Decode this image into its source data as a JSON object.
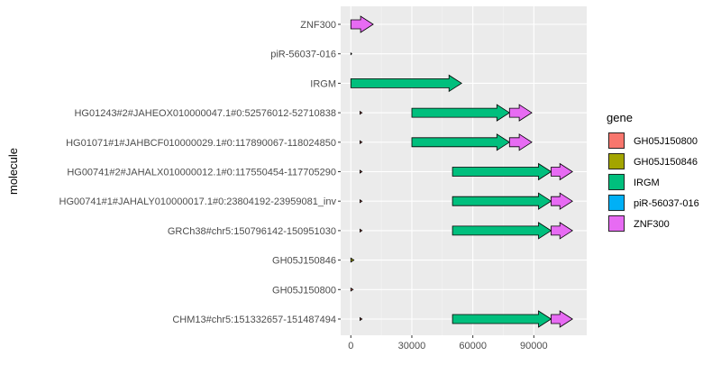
{
  "chart_data": {
    "type": "gene-arrow",
    "xlabel": "",
    "ylabel": "molecule",
    "xlim": [
      -5000,
      116000
    ],
    "x_ticks": [
      0,
      30000,
      60000,
      90000
    ],
    "x_tick_labels": [
      "0",
      "30000",
      "60000",
      "90000"
    ],
    "grid": true,
    "legend": {
      "title": "gene",
      "position": "right",
      "entries": [
        {
          "name": "GH05J150800",
          "color": "#F8766D"
        },
        {
          "name": "GH05J150846",
          "color": "#A3A500"
        },
        {
          "name": "IRGM",
          "color": "#00BF7D"
        },
        {
          "name": "piR-56037-016",
          "color": "#00B0F6"
        },
        {
          "name": "ZNF300",
          "color": "#E76BF3"
        }
      ]
    },
    "molecules": [
      "ZNF300",
      "piR-56037-016",
      "IRGM",
      "HG01243#2#JAHEOX010000047.1#0:52576012-52710838",
      "HG01071#1#JAHBCF010000029.1#0:117890067-118024850",
      "HG00741#2#JAHALX010000012.1#0:117550454-117705290",
      "HG00741#1#JAHALY010000017.1#0:23804192-23959081_inv",
      "GRCh38#chr5:150796142-150951030",
      "GH05J150846",
      "GH05J150800",
      "CHM13#chr5:151332657-151487494"
    ],
    "genes": [
      {
        "molecule": "ZNF300",
        "gene": "ZNF300",
        "start": 0,
        "end": 11000
      },
      {
        "molecule": "piR-56037-016",
        "gene": "piR-56037-016",
        "start": 0,
        "end": 300
      },
      {
        "molecule": "IRGM",
        "gene": "IRGM",
        "start": 0,
        "end": 54500
      },
      {
        "molecule": "HG01243#2#JAHEOX010000047.1#0:52576012-52710838",
        "gene": "GH05J150800",
        "start": 4500,
        "end": 5500
      },
      {
        "molecule": "HG01243#2#JAHEOX010000047.1#0:52576012-52710838",
        "gene": "IRGM",
        "start": 30000,
        "end": 78000
      },
      {
        "molecule": "HG01243#2#JAHEOX010000047.1#0:52576012-52710838",
        "gene": "ZNF300",
        "start": 78000,
        "end": 89000
      },
      {
        "molecule": "HG01071#1#JAHBCF010000029.1#0:117890067-118024850",
        "gene": "GH05J150800",
        "start": 4500,
        "end": 5500
      },
      {
        "molecule": "HG01071#1#JAHBCF010000029.1#0:117890067-118024850",
        "gene": "IRGM",
        "start": 30000,
        "end": 78000
      },
      {
        "molecule": "HG01071#1#JAHBCF010000029.1#0:117890067-118024850",
        "gene": "ZNF300",
        "start": 78000,
        "end": 89000
      },
      {
        "molecule": "HG00741#2#JAHALX010000012.1#0:117550454-117705290",
        "gene": "GH05J150800",
        "start": 4500,
        "end": 5500
      },
      {
        "molecule": "HG00741#2#JAHALX010000012.1#0:117550454-117705290",
        "gene": "IRGM",
        "start": 50000,
        "end": 98500
      },
      {
        "molecule": "HG00741#2#JAHALX010000012.1#0:117550454-117705290",
        "gene": "ZNF300",
        "start": 98500,
        "end": 109000
      },
      {
        "molecule": "HG00741#1#JAHALY010000017.1#0:23804192-23959081_inv",
        "gene": "GH05J150800",
        "start": 4500,
        "end": 5500
      },
      {
        "molecule": "HG00741#1#JAHALY010000017.1#0:23804192-23959081_inv",
        "gene": "IRGM",
        "start": 50000,
        "end": 98500
      },
      {
        "molecule": "HG00741#1#JAHALY010000017.1#0:23804192-23959081_inv",
        "gene": "ZNF300",
        "start": 98500,
        "end": 109000
      },
      {
        "molecule": "GRCh38#chr5:150796142-150951030",
        "gene": "GH05J150800",
        "start": 4500,
        "end": 5500
      },
      {
        "molecule": "GRCh38#chr5:150796142-150951030",
        "gene": "IRGM",
        "start": 50000,
        "end": 98500
      },
      {
        "molecule": "GRCh38#chr5:150796142-150951030",
        "gene": "ZNF300",
        "start": 98500,
        "end": 109000
      },
      {
        "molecule": "GH05J150846",
        "gene": "GH05J150846",
        "start": 0,
        "end": 1500
      },
      {
        "molecule": "GH05J150800",
        "gene": "GH05J150800",
        "start": 0,
        "end": 1100
      },
      {
        "molecule": "CHM13#chr5:151332657-151487494",
        "gene": "GH05J150800",
        "start": 4500,
        "end": 5500
      },
      {
        "molecule": "CHM13#chr5:151332657-151487494",
        "gene": "IRGM",
        "start": 50000,
        "end": 98500
      },
      {
        "molecule": "CHM13#chr5:151332657-151487494",
        "gene": "ZNF300",
        "start": 98500,
        "end": 109000
      }
    ]
  }
}
